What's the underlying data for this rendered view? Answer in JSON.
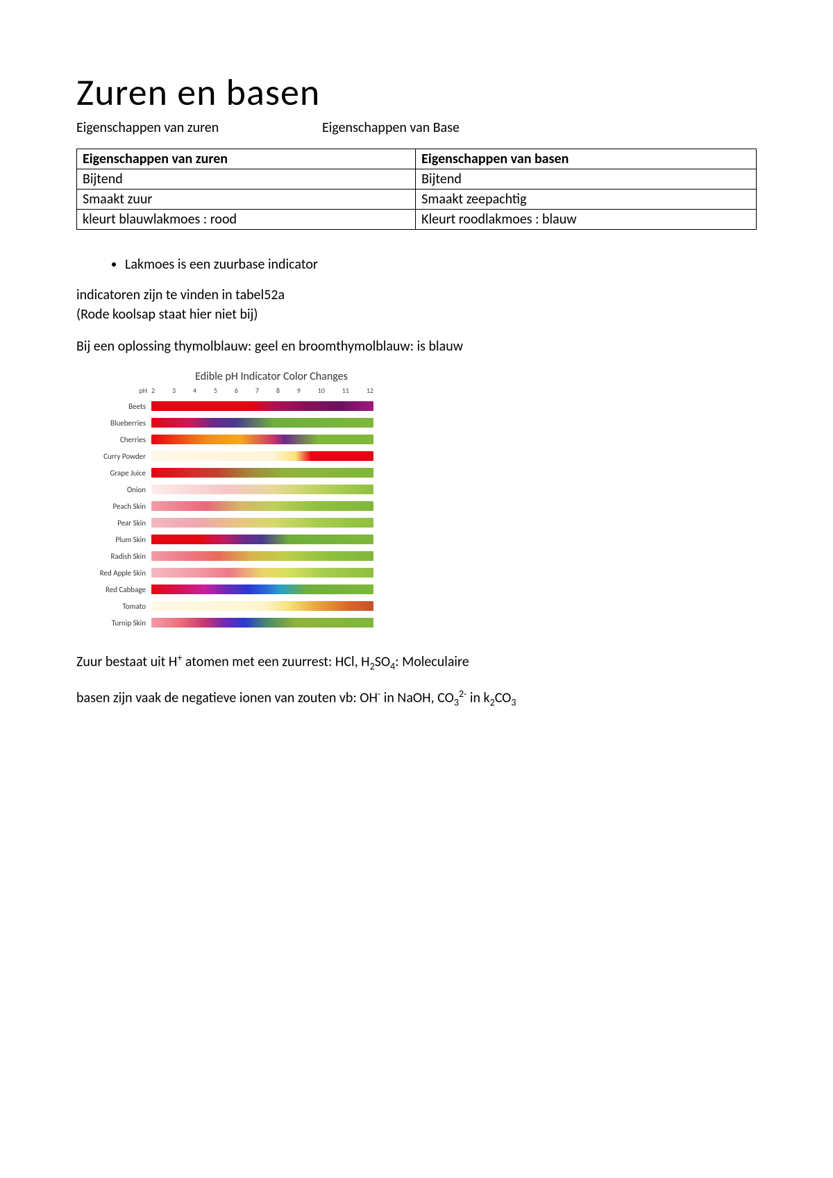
{
  "title": "Zuren en basen",
  "subhead_left": "Eigenschappen van zuren",
  "subhead_right": "Eigenschappen van Base",
  "table": {
    "header_left": "Eigenschappen van zuren",
    "header_right": "Eigenschappen van basen",
    "rows": [
      [
        "Bijtend",
        "Bijtend"
      ],
      [
        "Smaakt zuur",
        "Smaakt zeepachtig"
      ],
      [
        "kleurt blauwlakmoes : rood",
        "Kleurt roodlakmoes : blauw"
      ]
    ]
  },
  "bullet1": "Lakmoes is een zuurbase indicator",
  "para1": "indicatoren zijn te vinden in tabel52a",
  "para2": "(Rode koolsap staat hier niet bij)",
  "para3": "Bij een oplossing thymolblauw: geel en broomthymolblauw: is blauw",
  "chart": {
    "title": "Edible pH Indicator Color Changes",
    "axis_label": "pH",
    "ticks": [
      "2",
      "3",
      "4",
      "5",
      "6",
      "7",
      "8",
      "9",
      "10",
      "11",
      "12"
    ],
    "rows": [
      {
        "label": "Beets",
        "gradient": "linear-gradient(to right,#e30613 0%,#e30613 45%,#b01050 55%,#8a0f5a 70%,#6b1160 85%,#a01a7a 100%)"
      },
      {
        "label": "Blueberries",
        "gradient": "linear-gradient(to right,#e30613 0%,#d4145a 18%,#6a2a8a 28%,#4a3a8f 38%,#6fae3d 55%,#7fb83a 100%)"
      },
      {
        "label": "Cherries",
        "gradient": "linear-gradient(to right,#e30613 0%,#f28c1a 25%,#f6a81c 40%,#c8356d 55%,#6a2a8a 60%,#7fb83a 75%,#7fb83a 100%)"
      },
      {
        "label": "Curry Powder",
        "gradient": "linear-gradient(to right,#fef9e7 0%,#fdf5d6 55%,#f9e27a 65%,#e30613 72%,#e30613 100%)"
      },
      {
        "label": "Grape Juice",
        "gradient": "linear-gradient(to right,#e30613 0%,#d62a2a 18%,#c0432f 30%,#a38a3a 45%,#8fb23a 60%,#7fb83a 100%)"
      },
      {
        "label": "Onion",
        "gradient": "linear-gradient(to right,#fdecec 0%,#f9d6d6 20%,#f4c6c6 35%,#e8d89a 55%,#c8d66a 70%,#a6cc4f 85%,#8fc040 100%)"
      },
      {
        "label": "Peach Skin",
        "gradient": "linear-gradient(to right,#f29ca6 0%,#f07a8a 15%,#e96a7a 25%,#d8b46a 40%,#bfcf5a 55%,#8fc040 75%,#7fb83a 100%)"
      },
      {
        "label": "Pear Skin",
        "gradient": "linear-gradient(to right,#f4b8c0 0%,#f0a6b0 20%,#e8c680 40%,#d6d86a 55%,#a6cc4f 75%,#8fc040 100%)"
      },
      {
        "label": "Plum Skin",
        "gradient": "linear-gradient(to right,#e30613 0%,#e30613 22%,#c41a5a 32%,#6a2a8a 42%,#4a3a8f 50%,#6fae3d 62%,#7fb83a 100%)"
      },
      {
        "label": "Radish Skin",
        "gradient": "linear-gradient(to right,#f29ca6 0%,#ee7a8a 15%,#e96a5a 30%,#d8b44a 45%,#bfcf4a 60%,#8fc040 80%,#7fb83a 100%)"
      },
      {
        "label": "Red Apple Skin",
        "gradient": "linear-gradient(to right,#f4b8c0 0%,#f29ca6 20%,#ee7a8a 35%,#e8d66a 50%,#d6e05a 62%,#a6cc4f 78%,#8fc040 100%)"
      },
      {
        "label": "Red Cabbage",
        "gradient": "linear-gradient(to right,#e30613 0%,#d4145a 14%,#c8209a 24%,#6a2ab8 34%,#2a3ad4 44%,#2a6ad4 52%,#2aa0c8 58%,#6fae3d 70%,#7fb83a 100%)"
      },
      {
        "label": "Tomato",
        "gradient": "linear-gradient(to right,#fef9e7 0%,#fdf5d0 50%,#f6e27a 62%,#e8a43a 75%,#d86a2a 88%,#c8502a 100%)"
      },
      {
        "label": "Turnip Skin",
        "gradient": "linear-gradient(to right,#f29ca6 0%,#e96a7a 14%,#c8356d 24%,#6a2ab8 34%,#2a3ad4 42%,#4a8a6a 52%,#8fb23a 65%,#7fb83a 100%)"
      }
    ]
  },
  "para4_html": "Zuur bestaat uit H<sup>+</sup> atomen met een zuurrest: HCl, H<sub>2</sub>SO<sub>4</sub>: Moleculaire",
  "para5_html": "basen zijn vaak de negatieve ionen van zouten vb: OH<sup>-</sup> in NaOH, CO<sub>3</sub><sup>2-</sup> in k<sub>2</sub>CO<sub>3</sub>"
}
